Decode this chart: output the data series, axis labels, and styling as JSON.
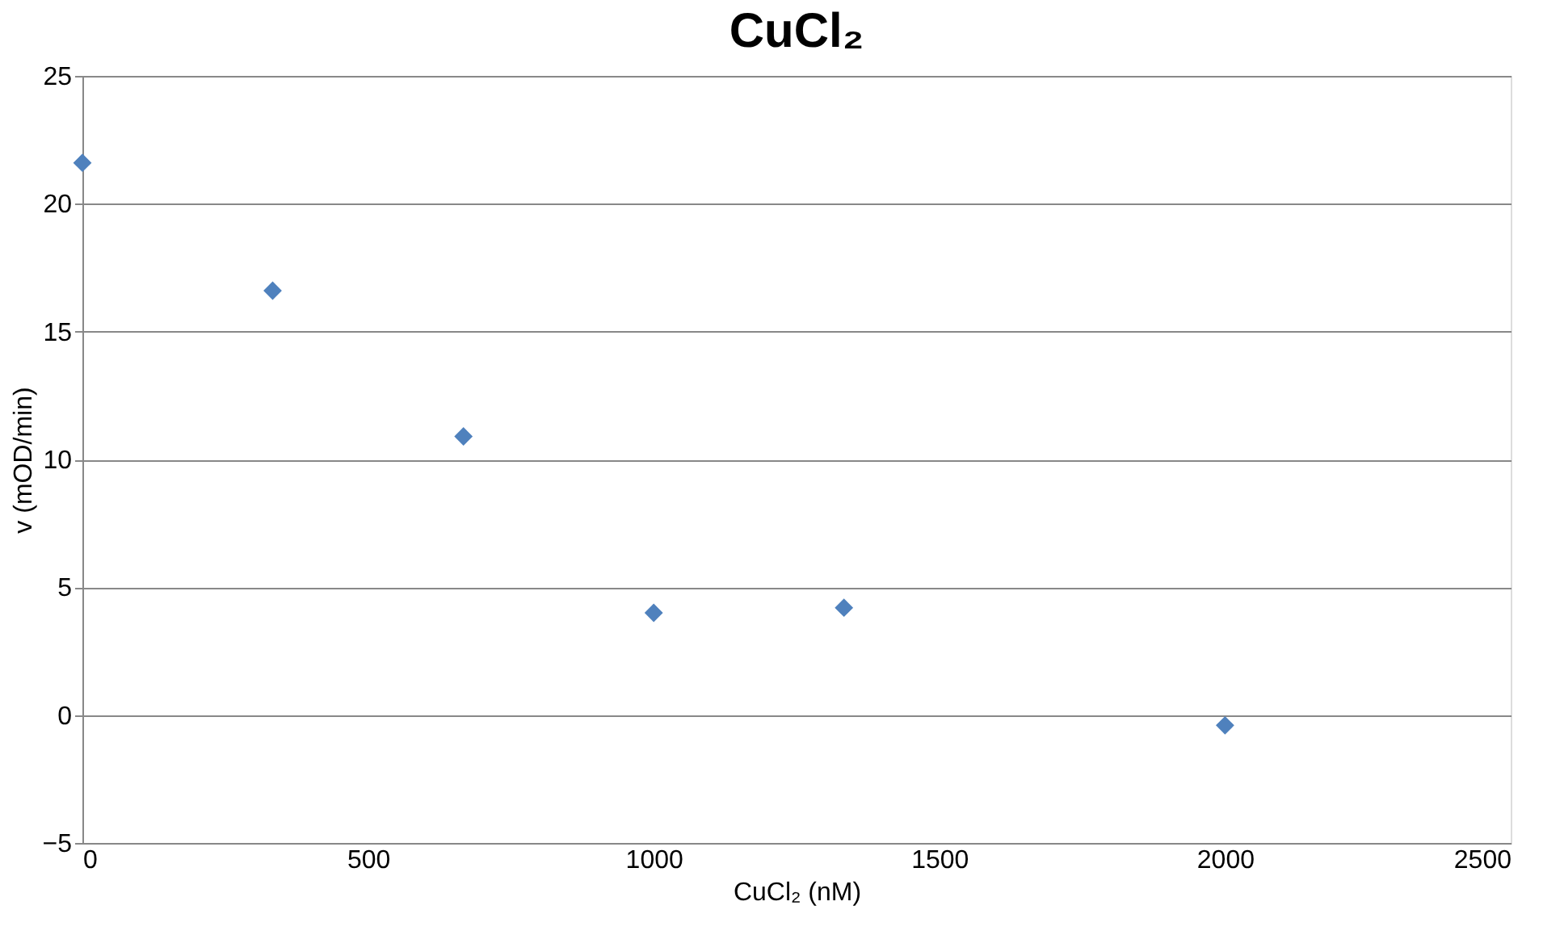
{
  "chart_data": {
    "type": "scatter",
    "title": "CuCl₂",
    "xlabel": "CuCl₂ (nM)",
    "ylabel": "v (mOD/min)",
    "x": [
      0,
      333,
      667,
      1000,
      1333,
      2000
    ],
    "series": [
      {
        "color": "#4f81bd",
        "values": [
          21.6,
          16.6,
          10.9,
          4.0,
          4.2,
          -0.4
        ]
      }
    ],
    "xlim": [
      0,
      2500
    ],
    "xticks": [
      0,
      500,
      1000,
      1500,
      2000,
      2500
    ],
    "ylim": [
      -5,
      25
    ],
    "yticks": [
      -5,
      0,
      5,
      10,
      15,
      20,
      25
    ],
    "grid": "y",
    "marker": "diamond",
    "legend": false
  }
}
